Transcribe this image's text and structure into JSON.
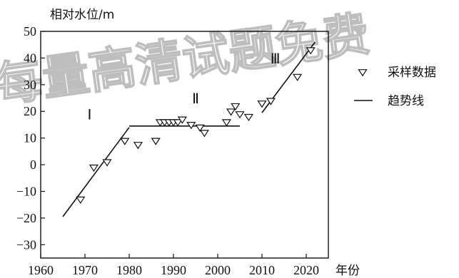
{
  "watermark": "每量高清试题免费",
  "chart_data": {
    "type": "scatter",
    "title": "",
    "ylabel": "相对水位/m",
    "xlabel": "年份",
    "xlim": [
      1960,
      2025
    ],
    "ylim": [
      -35,
      50
    ],
    "xticks": [
      1960,
      1970,
      1980,
      1990,
      2000,
      2010,
      2020
    ],
    "yticks": [
      -30,
      -20,
      -10,
      0,
      10,
      20,
      30,
      40,
      50
    ],
    "legend": {
      "position": "right",
      "items": [
        {
          "name": "采样数据",
          "symbol": "triangle-down"
        },
        {
          "name": "趋势线",
          "symbol": "line"
        }
      ]
    },
    "series": [
      {
        "name": "采样数据",
        "kind": "points",
        "points": [
          [
            1969,
            -13
          ],
          [
            1972,
            -1
          ],
          [
            1975,
            1
          ],
          [
            1979,
            9
          ],
          [
            1982,
            7.5
          ],
          [
            1986,
            9
          ],
          [
            1987,
            16
          ],
          [
            1988,
            16
          ],
          [
            1989,
            16
          ],
          [
            1990,
            16
          ],
          [
            1991,
            16
          ],
          [
            1992,
            17
          ],
          [
            1994,
            15
          ],
          [
            1996,
            14
          ],
          [
            1997,
            12
          ],
          [
            2002,
            16
          ],
          [
            2003,
            20
          ],
          [
            2004,
            22
          ],
          [
            2005,
            19
          ],
          [
            2007,
            18
          ],
          [
            2010,
            23
          ],
          [
            2012,
            24
          ],
          [
            2018,
            33
          ],
          [
            2021,
            43
          ]
        ]
      },
      {
        "name": "趋势线",
        "kind": "lines",
        "segments": [
          {
            "label": "Ⅰ",
            "from": [
              1965,
              -19.5
            ],
            "to": [
              1980,
              14
            ]
          },
          {
            "label": "Ⅱ",
            "from": [
              1980,
              14.5
            ],
            "to": [
              2005,
              14.5
            ]
          },
          {
            "label": "Ⅲ",
            "from": [
              2010,
              19.5
            ],
            "to": [
              2022,
              46
            ]
          }
        ]
      }
    ]
  }
}
